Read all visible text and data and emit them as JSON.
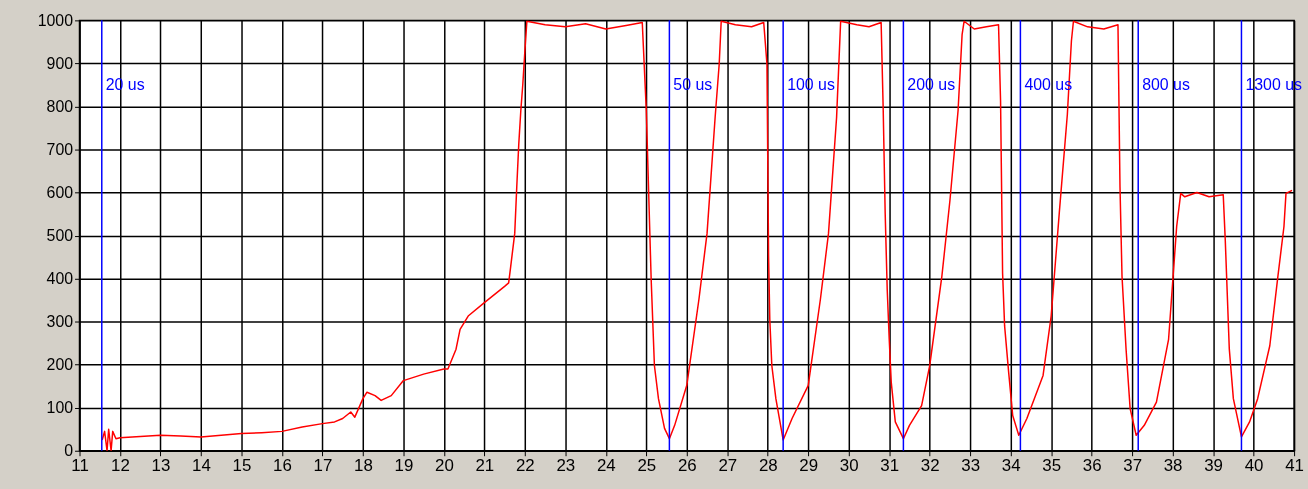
{
  "chart_data": {
    "type": "line",
    "x": [
      11.56,
      11.62,
      11.68,
      11.72,
      11.78,
      11.82,
      11.9,
      12.0,
      12.5,
      13.0,
      13.5,
      14.0,
      14.5,
      15.0,
      15.5,
      16.0,
      16.5,
      17.0,
      17.3,
      17.5,
      17.7,
      17.8,
      18.0,
      18.1,
      18.3,
      18.45,
      18.7,
      19.0,
      19.5,
      20.0,
      20.1,
      20.3,
      20.4,
      20.6,
      21.0,
      21.5,
      21.6,
      21.65,
      21.75,
      21.8,
      21.85,
      21.9,
      21.95,
      22.0,
      22.05,
      22.5,
      23.0,
      23.5,
      24.0,
      24.5,
      24.9,
      25.0,
      25.12,
      25.2,
      25.3,
      25.45,
      25.57,
      25.7,
      26.0,
      26.3,
      26.5,
      26.7,
      26.8,
      26.85,
      27.2,
      27.6,
      27.9,
      27.98,
      28.0,
      28.02,
      28.05,
      28.1,
      28.2,
      28.38,
      28.6,
      29.0,
      29.3,
      29.5,
      29.7,
      29.8,
      30.2,
      30.5,
      30.8,
      30.85,
      30.9,
      30.95,
      31.0,
      31.05,
      31.15,
      31.35,
      31.5,
      31.8,
      32.0,
      32.3,
      32.5,
      32.7,
      32.8,
      32.85,
      33.1,
      33.4,
      33.7,
      33.75,
      33.8,
      33.85,
      33.95,
      34.05,
      34.2,
      34.4,
      34.8,
      35.0,
      35.2,
      35.4,
      35.5,
      35.55,
      35.9,
      36.3,
      36.65,
      36.7,
      36.75,
      36.85,
      36.95,
      37.1,
      37.3,
      37.6,
      37.9,
      38.0,
      38.1,
      38.2,
      38.3,
      38.6,
      38.9,
      39.25,
      39.3,
      39.4,
      39.5,
      39.7,
      39.9,
      40.1,
      40.4,
      40.6,
      40.75,
      40.8,
      40.95
    ],
    "series": [
      {
        "color": "#ff0000",
        "values": [
          25,
          45,
          0,
          50,
          0,
          45,
          28,
          30,
          33,
          36,
          34,
          32,
          36,
          40,
          42,
          45,
          55,
          63,
          67,
          75,
          90,
          78,
          121,
          136,
          128,
          117,
          128,
          163,
          178,
          190,
          190,
          236,
          282,
          313,
          344,
          382,
          390,
          428,
          505,
          613,
          713,
          790,
          852,
          928,
          998,
          990,
          985,
          992,
          980,
          988,
          995,
          790,
          398,
          198,
          121,
          52,
          28,
          59,
          152,
          352,
          505,
          775,
          898,
          998,
          990,
          985,
          995,
          898,
          675,
          452,
          305,
          198,
          121,
          25,
          75,
          152,
          352,
          505,
          775,
          998,
          990,
          985,
          995,
          798,
          552,
          375,
          259,
          159,
          67,
          28,
          59,
          105,
          198,
          405,
          582,
          790,
          967,
          998,
          980,
          985,
          990,
          813,
          413,
          290,
          182,
          82,
          36,
          75,
          175,
          313,
          552,
          782,
          952,
          998,
          985,
          980,
          990,
          613,
          405,
          236,
          98,
          36,
          59,
          113,
          259,
          390,
          521,
          598,
          590,
          600,
          590,
          595,
          490,
          236,
          121,
          32,
          67,
          121,
          244,
          405,
          521,
          598,
          605
        ]
      }
    ],
    "xlim": [
      11,
      41
    ],
    "ylim": [
      0,
      1000
    ],
    "xticks": [
      11,
      12,
      13,
      14,
      15,
      16,
      17,
      18,
      19,
      20,
      21,
      22,
      23,
      24,
      25,
      26,
      27,
      28,
      29,
      30,
      31,
      32,
      33,
      34,
      35,
      36,
      37,
      38,
      39,
      40,
      41
    ],
    "yticks": [
      0,
      100,
      200,
      300,
      400,
      500,
      600,
      700,
      800,
      900,
      1000
    ],
    "grid": true,
    "ref_lines": [
      {
        "axis": "x",
        "value": 11.55,
        "label": "20 us",
        "color": "#0000ff"
      },
      {
        "axis": "x",
        "value": 25.57,
        "label": "50 us",
        "color": "#0000ff"
      },
      {
        "axis": "x",
        "value": 28.38,
        "label": "100 us",
        "color": "#0000ff"
      },
      {
        "axis": "x",
        "value": 31.35,
        "label": "200 us",
        "color": "#0000ff"
      },
      {
        "axis": "x",
        "value": 34.24,
        "label": "400 us",
        "color": "#0000ff"
      },
      {
        "axis": "x",
        "value": 37.15,
        "label": "800 us",
        "color": "#0000ff"
      },
      {
        "axis": "x",
        "value": 39.7,
        "label": "1300 us",
        "color": "#0000ff"
      }
    ]
  }
}
